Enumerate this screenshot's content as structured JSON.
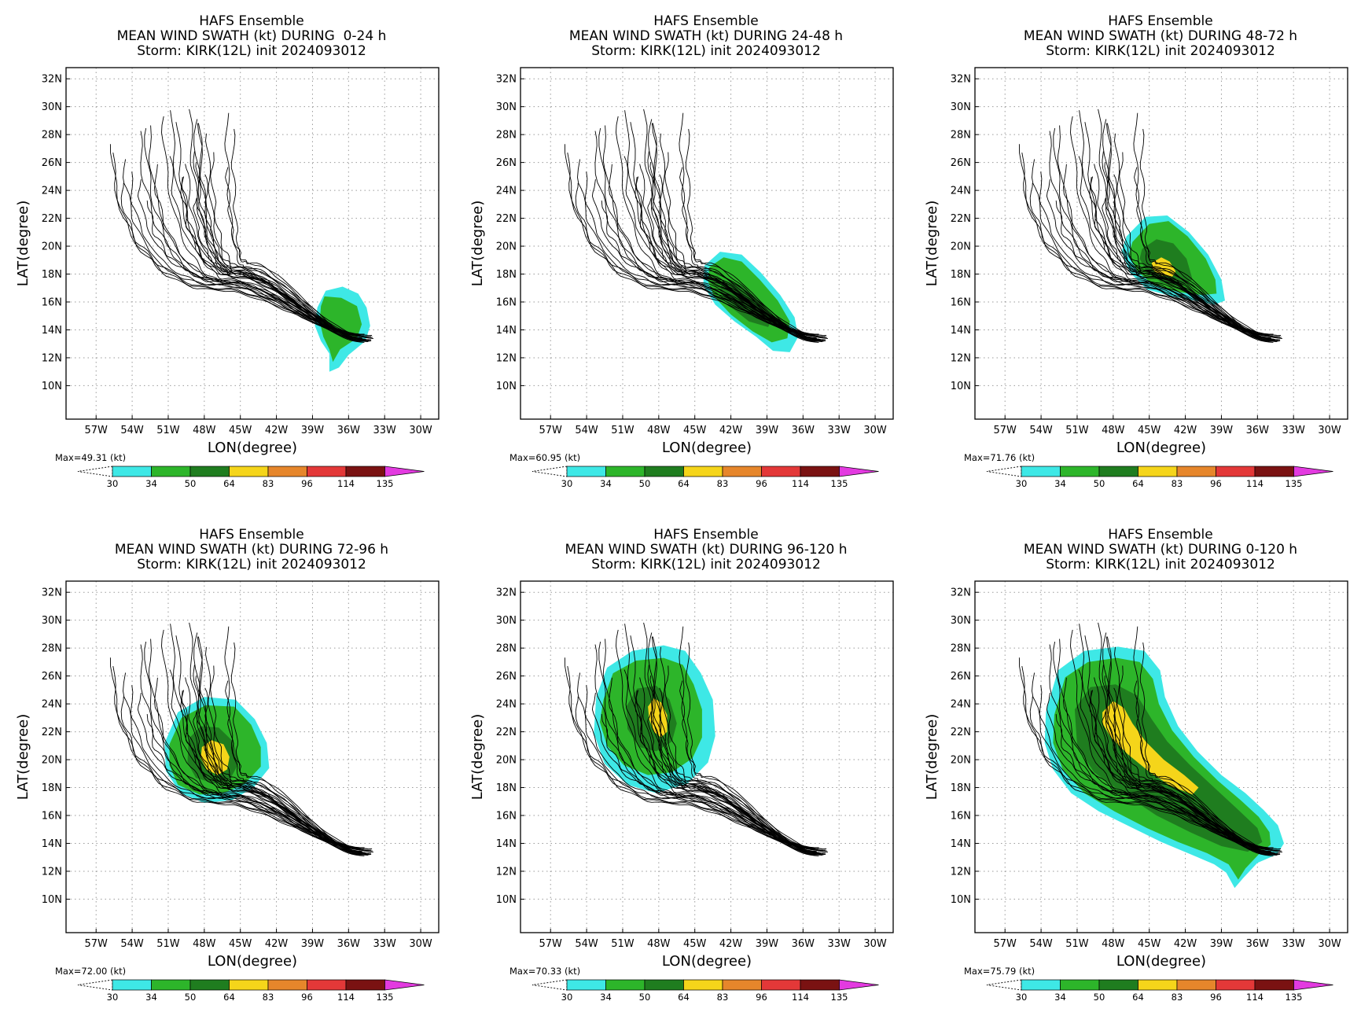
{
  "common": {
    "title_line1": "HAFS Ensemble",
    "title_line3": "Storm: KIRK(12L) init 2024093012",
    "xlabel": "LON(degree)",
    "ylabel": "LAT(degree)",
    "lat_ticks": [
      "32N",
      "30N",
      "28N",
      "26N",
      "24N",
      "22N",
      "20N",
      "18N",
      "16N",
      "14N",
      "12N",
      "10N"
    ],
    "lon_ticks": [
      "57W",
      "54W",
      "51W",
      "48W",
      "45W",
      "42W",
      "39W",
      "36W",
      "33W",
      "30W"
    ],
    "colorbar": {
      "unit_label": "(kt)",
      "levels": [
        "30",
        "34",
        "50",
        "64",
        "83",
        "96",
        "114",
        "135"
      ],
      "colors": [
        "#3ee8e6",
        "#2db52a",
        "#1f7d1f",
        "#f5d51a",
        "#e6862b",
        "#e33838",
        "#7a1212",
        "#e33ae0"
      ]
    },
    "track_color": "#000000"
  },
  "panels": [
    {
      "title_line2": "MEAN WIND SWATH (kt) DURING  0-24 h",
      "max_label": "Max=49.31"
    },
    {
      "title_line2": "MEAN WIND SWATH (kt) DURING 24-48 h",
      "max_label": "Max=60.95"
    },
    {
      "title_line2": "MEAN WIND SWATH (kt) DURING 48-72 h",
      "max_label": "Max=71.76"
    },
    {
      "title_line2": "MEAN WIND SWATH (kt) DURING 72-96 h",
      "max_label": "Max=72.00"
    },
    {
      "title_line2": "MEAN WIND SWATH (kt) DURING 96-120 h",
      "max_label": "Max=70.33"
    },
    {
      "title_line2": "MEAN WIND SWATH (kt) DURING 0-120 h",
      "max_label": "Max=75.79"
    }
  ]
}
